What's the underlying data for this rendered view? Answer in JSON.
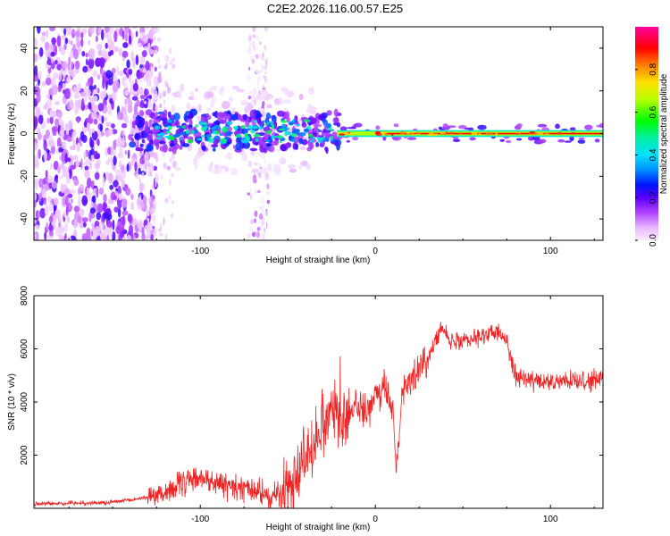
{
  "title": "C2E2.2026.116.00.57.E25",
  "colors": {
    "frame": "#000000",
    "snr_line": "#ee2222",
    "background": "#ffffff"
  },
  "chart_data": [
    {
      "name": "spectrogram",
      "type": "heatmap",
      "title": "C2E2.2026.116.00.57.E25",
      "xlabel": "Height of straight line (km)",
      "ylabel": "Frequency (Hz)",
      "xlim": [
        -195,
        130
      ],
      "ylim": [
        -50,
        50
      ],
      "xticks": [
        -100,
        0,
        100
      ],
      "yticks": [
        -40,
        -20,
        0,
        20,
        40
      ],
      "description_of_regions": [
        {
          "x_range": [
            -195,
            -125
          ],
          "freq_range": [
            -50,
            50
          ],
          "amplitude": [
            0.05,
            0.25
          ]
        },
        {
          "x_range": [
            -72,
            -62
          ],
          "freq_range": [
            -50,
            50
          ],
          "amplitude": [
            0.0,
            0.1
          ]
        },
        {
          "x_range": [
            -140,
            -20
          ],
          "freq_range": [
            -10,
            12
          ],
          "amplitude": [
            0.2,
            0.55
          ]
        },
        {
          "x_range": [
            -20,
            130
          ],
          "freq_range": [
            -1,
            1
          ],
          "amplitude": [
            0.7,
            1.0
          ]
        }
      ],
      "colorbar": {
        "label": "Normalized spectral amplitude",
        "range": [
          0,
          1
        ],
        "ticks": [
          0.0,
          0.2,
          0.4,
          0.6,
          0.8
        ]
      }
    },
    {
      "name": "snr",
      "type": "line",
      "xlabel": "Height of straight line (km)",
      "ylabel": "SNR (10 * v/v)",
      "xlim": [
        -195,
        130
      ],
      "ylim": [
        0,
        8000
      ],
      "xticks": [
        -100,
        0,
        100
      ],
      "yticks": [
        2000,
        4000,
        6000,
        8000
      ],
      "series": [
        {
          "name": "SNR",
          "x": [
            -195,
            -175,
            -155,
            -140,
            -125,
            -110,
            -100,
            -90,
            -80,
            -70,
            -60,
            -50,
            -45,
            -40,
            -35,
            -30,
            -25,
            -22,
            -20,
            -15,
            -10,
            -5,
            0,
            5,
            10,
            12,
            15,
            20,
            25,
            30,
            35,
            38,
            42,
            50,
            60,
            70,
            75,
            80,
            90,
            100,
            110,
            120,
            130
          ],
          "values": [
            150,
            200,
            200,
            300,
            500,
            900,
            1200,
            900,
            800,
            700,
            400,
            700,
            1500,
            2000,
            2600,
            3200,
            3800,
            4000,
            3000,
            3500,
            4000,
            3500,
            4200,
            4500,
            3800,
            1300,
            4500,
            4800,
            5200,
            5600,
            6500,
            7000,
            6200,
            6400,
            6500,
            6600,
            6400,
            5000,
            4800,
            4700,
            4800,
            4700,
            4900
          ]
        }
      ]
    }
  ]
}
